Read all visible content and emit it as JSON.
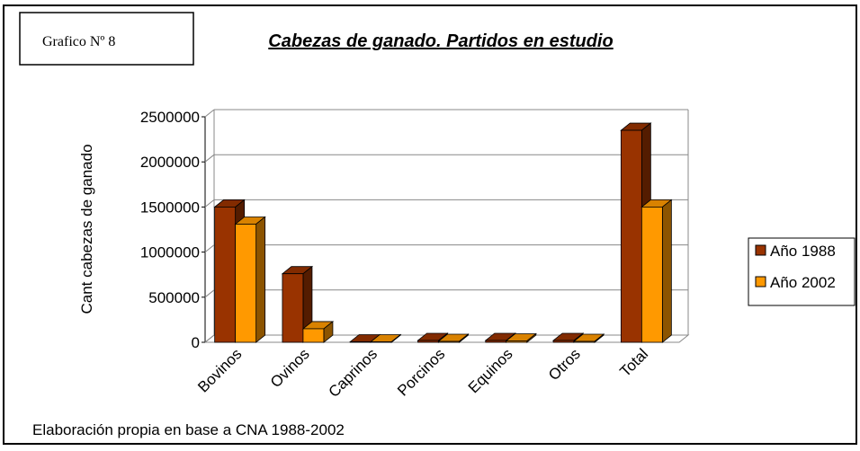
{
  "header": {
    "label": "Grafico Nº 8"
  },
  "footer": {
    "note": "Elaboración propia en base a CNA 1988-2002"
  },
  "chart_data": {
    "type": "bar3d",
    "title": "Cabezas de ganado. Partidos en estudio",
    "y_label": "Cant cabezas de ganado",
    "categories": [
      "Bovinos",
      "Ovinos",
      "Caprinos",
      "Porcinos",
      "Equinos",
      "Otros",
      "Total"
    ],
    "series": [
      {
        "name": "Año 1988",
        "color": "#993300",
        "values": [
          1500000,
          760000,
          5000,
          20000,
          20000,
          20000,
          2350000
        ]
      },
      {
        "name": "Año 2002",
        "color": "#ff9900",
        "values": [
          1310000,
          150000,
          5000,
          10000,
          15000,
          10000,
          1500000
        ]
      }
    ],
    "ylim": [
      0,
      2500000
    ],
    "yticks": [
      0,
      500000,
      1000000,
      1500000,
      2000000,
      2500000
    ],
    "grid": true,
    "legend": "right"
  }
}
